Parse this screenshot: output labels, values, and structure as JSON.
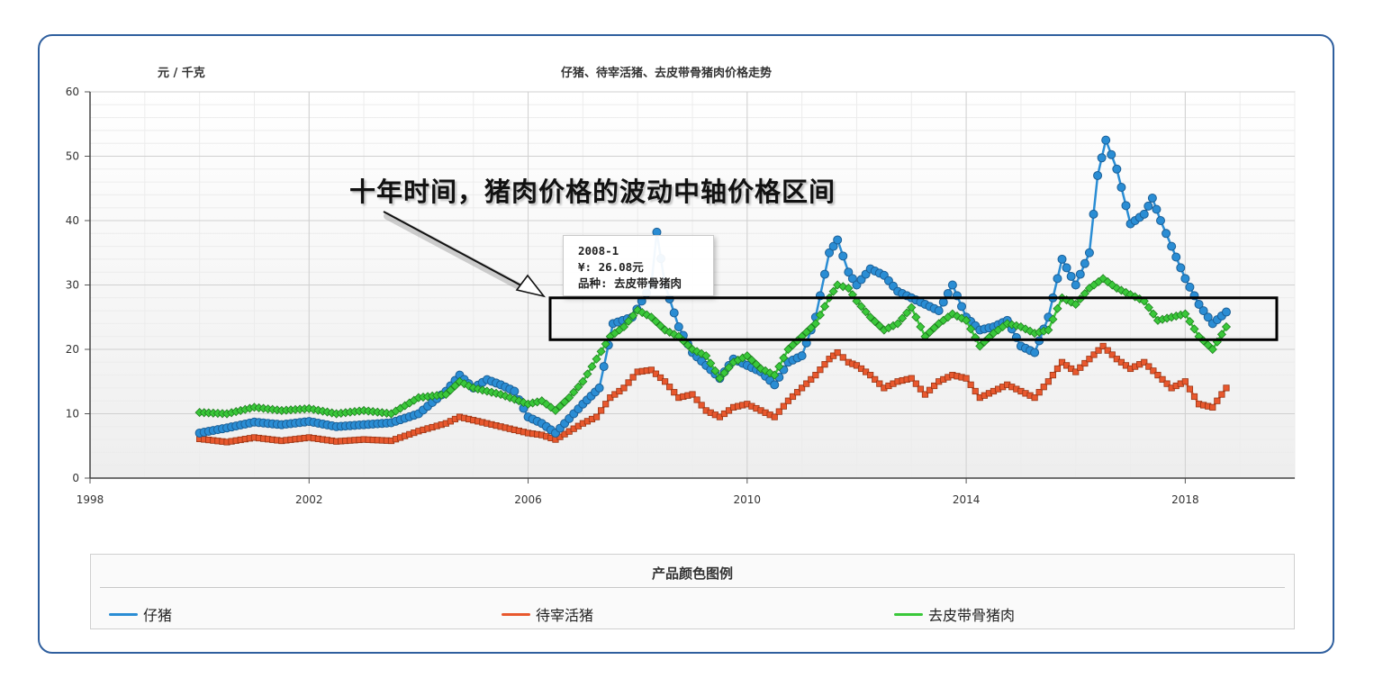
{
  "chart_data": {
    "type": "line",
    "title": "仔猪、待宰活猪、去皮带骨猪肉价格走势",
    "ylabel": "元 / 千克",
    "xlabel": "",
    "xlim": [
      1998,
      2020
    ],
    "ylim": [
      0,
      60
    ],
    "x_ticks": [
      "1998",
      "2002",
      "2006",
      "2010",
      "2014",
      "2018"
    ],
    "y_ticks": [
      "0",
      "10",
      "20",
      "30",
      "40",
      "50",
      "60"
    ],
    "grid": true,
    "legend_title": "产品颜色图例",
    "legend_position": "bottom",
    "series": [
      {
        "name": "仔猪",
        "color": "#2a8dd4",
        "marker": "circle",
        "points": [
          [
            2000.0,
            7.0
          ],
          [
            2000.5,
            7.8
          ],
          [
            2001.0,
            8.7
          ],
          [
            2001.5,
            8.3
          ],
          [
            2002.0,
            8.8
          ],
          [
            2002.5,
            8.0
          ],
          [
            2003.0,
            8.3
          ],
          [
            2003.5,
            8.6
          ],
          [
            2004.0,
            10.0
          ],
          [
            2004.5,
            13.5
          ],
          [
            2004.75,
            16.0
          ],
          [
            2005.0,
            14.0
          ],
          [
            2005.25,
            15.3
          ],
          [
            2005.5,
            14.5
          ],
          [
            2005.75,
            13.5
          ],
          [
            2006.0,
            9.5
          ],
          [
            2006.25,
            8.5
          ],
          [
            2006.5,
            7.0
          ],
          [
            2007.0,
            11.5
          ],
          [
            2007.3,
            14.0
          ],
          [
            2007.55,
            24.0
          ],
          [
            2007.9,
            25.0
          ],
          [
            2008.25,
            30.0
          ],
          [
            2008.35,
            38.2
          ],
          [
            2008.5,
            30.0
          ],
          [
            2008.75,
            23.5
          ],
          [
            2009.0,
            19.5
          ],
          [
            2009.5,
            15.5
          ],
          [
            2009.75,
            18.5
          ],
          [
            2010.0,
            17.5
          ],
          [
            2010.25,
            16.5
          ],
          [
            2010.5,
            14.5
          ],
          [
            2010.75,
            18.0
          ],
          [
            2011.0,
            19.0
          ],
          [
            2011.25,
            25.0
          ],
          [
            2011.5,
            35.0
          ],
          [
            2011.65,
            37.0
          ],
          [
            2011.85,
            32.0
          ],
          [
            2012.0,
            30.0
          ],
          [
            2012.25,
            32.5
          ],
          [
            2012.5,
            31.5
          ],
          [
            2012.75,
            29.0
          ],
          [
            2013.0,
            28.0
          ],
          [
            2013.25,
            27.0
          ],
          [
            2013.5,
            26.0
          ],
          [
            2013.75,
            30.0
          ],
          [
            2014.0,
            25.0
          ],
          [
            2014.25,
            23.0
          ],
          [
            2014.5,
            23.5
          ],
          [
            2014.75,
            24.5
          ],
          [
            2015.0,
            20.5
          ],
          [
            2015.25,
            19.5
          ],
          [
            2015.5,
            25.0
          ],
          [
            2015.75,
            34.0
          ],
          [
            2016.0,
            30.0
          ],
          [
            2016.25,
            35.0
          ],
          [
            2016.4,
            47.0
          ],
          [
            2016.55,
            52.5
          ],
          [
            2016.75,
            48.0
          ],
          [
            2017.0,
            39.5
          ],
          [
            2017.25,
            41.0
          ],
          [
            2017.4,
            43.5
          ],
          [
            2017.55,
            40.0
          ],
          [
            2017.75,
            36.0
          ],
          [
            2018.0,
            31.0
          ],
          [
            2018.25,
            27.0
          ],
          [
            2018.5,
            24.0
          ],
          [
            2018.75,
            25.8
          ]
        ]
      },
      {
        "name": "待宰活猪",
        "color": "#e8582e",
        "marker": "square",
        "points": [
          [
            2000.0,
            6.1
          ],
          [
            2000.5,
            5.6
          ],
          [
            2001.0,
            6.3
          ],
          [
            2001.5,
            5.8
          ],
          [
            2002.0,
            6.3
          ],
          [
            2002.5,
            5.7
          ],
          [
            2003.0,
            6.0
          ],
          [
            2003.5,
            5.8
          ],
          [
            2004.0,
            7.3
          ],
          [
            2004.5,
            8.5
          ],
          [
            2004.75,
            9.5
          ],
          [
            2005.0,
            9.0
          ],
          [
            2005.5,
            8.0
          ],
          [
            2006.0,
            7.0
          ],
          [
            2006.25,
            6.7
          ],
          [
            2006.5,
            6.0
          ],
          [
            2007.0,
            8.5
          ],
          [
            2007.25,
            9.5
          ],
          [
            2007.5,
            12.5
          ],
          [
            2007.75,
            14.0
          ],
          [
            2008.0,
            16.5
          ],
          [
            2008.25,
            16.8
          ],
          [
            2008.5,
            15.0
          ],
          [
            2008.75,
            12.5
          ],
          [
            2009.0,
            13.0
          ],
          [
            2009.25,
            10.5
          ],
          [
            2009.5,
            9.5
          ],
          [
            2009.75,
            11.0
          ],
          [
            2010.0,
            11.5
          ],
          [
            2010.25,
            10.5
          ],
          [
            2010.5,
            9.5
          ],
          [
            2010.75,
            12.0
          ],
          [
            2011.0,
            14.0
          ],
          [
            2011.25,
            16.0
          ],
          [
            2011.5,
            18.5
          ],
          [
            2011.65,
            19.5
          ],
          [
            2011.85,
            18.0
          ],
          [
            2012.0,
            17.5
          ],
          [
            2012.25,
            16.0
          ],
          [
            2012.5,
            14.0
          ],
          [
            2012.75,
            15.0
          ],
          [
            2013.0,
            15.5
          ],
          [
            2013.25,
            13.0
          ],
          [
            2013.5,
            15.0
          ],
          [
            2013.75,
            16.0
          ],
          [
            2014.0,
            15.5
          ],
          [
            2014.25,
            12.5
          ],
          [
            2014.5,
            13.5
          ],
          [
            2014.75,
            14.5
          ],
          [
            2015.0,
            13.5
          ],
          [
            2015.25,
            12.5
          ],
          [
            2015.5,
            15.0
          ],
          [
            2015.75,
            18.0
          ],
          [
            2016.0,
            16.5
          ],
          [
            2016.25,
            18.5
          ],
          [
            2016.5,
            20.5
          ],
          [
            2016.75,
            18.5
          ],
          [
            2017.0,
            17.0
          ],
          [
            2017.25,
            18.0
          ],
          [
            2017.5,
            16.0
          ],
          [
            2017.75,
            14.0
          ],
          [
            2018.0,
            15.0
          ],
          [
            2018.25,
            11.5
          ],
          [
            2018.5,
            11.0
          ],
          [
            2018.75,
            14.0
          ]
        ]
      },
      {
        "name": "去皮带骨猪肉",
        "color": "#3ac83a",
        "marker": "diamond",
        "points": [
          [
            2000.0,
            10.2
          ],
          [
            2000.5,
            10.0
          ],
          [
            2001.0,
            11.0
          ],
          [
            2001.5,
            10.5
          ],
          [
            2002.0,
            10.8
          ],
          [
            2002.5,
            10.0
          ],
          [
            2003.0,
            10.5
          ],
          [
            2003.5,
            10.0
          ],
          [
            2004.0,
            12.5
          ],
          [
            2004.5,
            13.0
          ],
          [
            2004.75,
            15.0
          ],
          [
            2005.0,
            14.0
          ],
          [
            2005.5,
            13.0
          ],
          [
            2006.0,
            11.5
          ],
          [
            2006.25,
            12.0
          ],
          [
            2006.5,
            10.5
          ],
          [
            2006.75,
            12.5
          ],
          [
            2007.0,
            15.0
          ],
          [
            2007.5,
            22.0
          ],
          [
            2007.75,
            23.5
          ],
          [
            2008.0,
            26.08
          ],
          [
            2008.25,
            25.0
          ],
          [
            2008.5,
            23.0
          ],
          [
            2008.75,
            22.0
          ],
          [
            2009.0,
            20.0
          ],
          [
            2009.25,
            19.0
          ],
          [
            2009.5,
            15.5
          ],
          [
            2009.75,
            18.0
          ],
          [
            2010.0,
            19.0
          ],
          [
            2010.25,
            17.0
          ],
          [
            2010.5,
            16.0
          ],
          [
            2010.75,
            20.0
          ],
          [
            2011.0,
            22.0
          ],
          [
            2011.25,
            24.0
          ],
          [
            2011.5,
            28.0
          ],
          [
            2011.65,
            30.0
          ],
          [
            2011.85,
            29.5
          ],
          [
            2012.0,
            27.5
          ],
          [
            2012.25,
            25.0
          ],
          [
            2012.5,
            23.0
          ],
          [
            2012.75,
            24.0
          ],
          [
            2013.0,
            26.5
          ],
          [
            2013.25,
            22.0
          ],
          [
            2013.5,
            24.0
          ],
          [
            2013.75,
            25.5
          ],
          [
            2014.0,
            24.5
          ],
          [
            2014.25,
            20.5
          ],
          [
            2014.5,
            22.5
          ],
          [
            2014.75,
            24.0
          ],
          [
            2015.0,
            23.5
          ],
          [
            2015.25,
            22.5
          ],
          [
            2015.5,
            23.0
          ],
          [
            2015.75,
            28.0
          ],
          [
            2016.0,
            27.0
          ],
          [
            2016.25,
            29.5
          ],
          [
            2016.5,
            31.0
          ],
          [
            2016.75,
            29.5
          ],
          [
            2017.0,
            28.5
          ],
          [
            2017.25,
            27.5
          ],
          [
            2017.5,
            24.5
          ],
          [
            2017.75,
            25.0
          ],
          [
            2018.0,
            25.5
          ],
          [
            2018.25,
            22.0
          ],
          [
            2018.5,
            20.0
          ],
          [
            2018.75,
            23.5
          ]
        ]
      }
    ],
    "annotation": "十年时间，猪肉价格的波动中轴价格区间",
    "highlight_band": [
      21.5,
      28
    ],
    "tooltip": {
      "title": "2008-1",
      "value_line": "¥: 26.08元",
      "series_line": "品种: 去皮带骨猪肉"
    }
  }
}
